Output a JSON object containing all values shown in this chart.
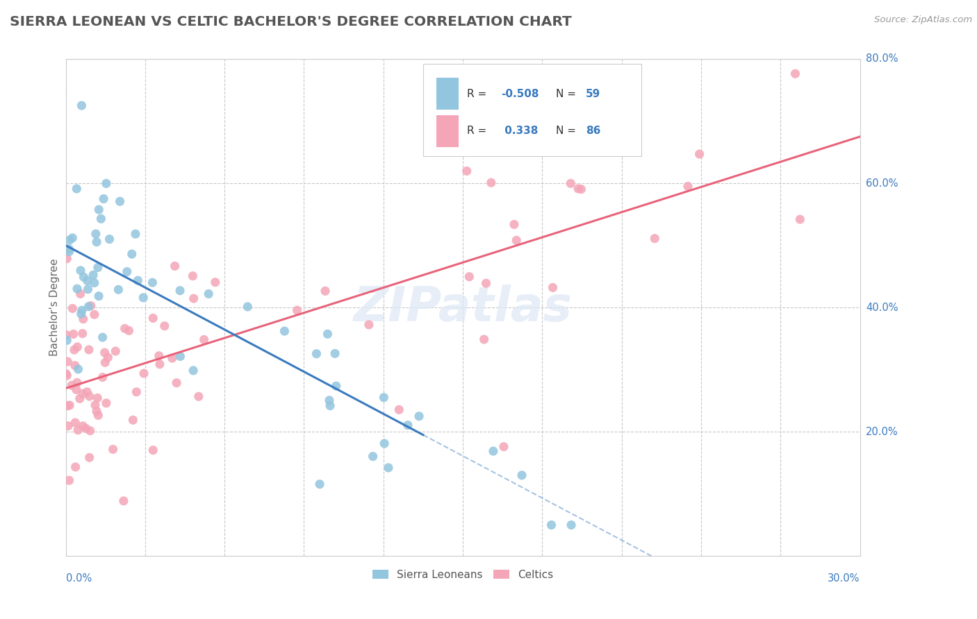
{
  "title": "SIERRA LEONEAN VS CELTIC BACHELOR'S DEGREE CORRELATION CHART",
  "source": "Source: ZipAtlas.com",
  "ylabel_label": "Bachelor's Degree",
  "xmin": 0.0,
  "xmax": 0.3,
  "ymin": 0.0,
  "ymax": 0.8,
  "sierra_R": -0.508,
  "sierra_N": 59,
  "celtic_R": 0.338,
  "celtic_N": 86,
  "sierra_color": "#92c5de",
  "celtic_color": "#f4a6b8",
  "sierra_line_color": "#3a7abf",
  "celtic_line_color": "#e8637a",
  "background_color": "#ffffff",
  "grid_color": "#c8c8c8",
  "sierra_line_x0": 0.0,
  "sierra_line_y0": 0.5,
  "sierra_line_x1": 0.135,
  "sierra_line_y1": 0.195,
  "sierra_line_solid_end": 0.135,
  "celtic_line_x0": 0.0,
  "celtic_line_y0": 0.27,
  "celtic_line_x1": 0.3,
  "celtic_line_y1": 0.675,
  "right_yticks": [
    0.2,
    0.4,
    0.6,
    0.8
  ],
  "right_ytick_labels": [
    "20.0%",
    "40.0%",
    "60.0%",
    "80.0%"
  ]
}
